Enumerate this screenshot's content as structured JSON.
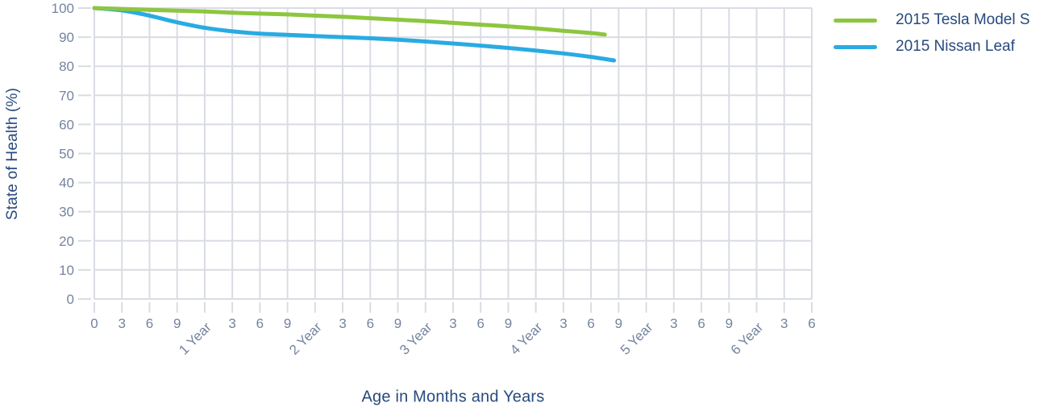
{
  "chart_data": {
    "type": "line",
    "title": "",
    "xlabel": "Age in Months and Years",
    "ylabel": "State of Health (%)",
    "x_unit": "months",
    "xlim": [
      0,
      78
    ],
    "ylim": [
      0,
      100
    ],
    "grid": true,
    "legend_position": "outside-top-right",
    "x_tick_step_months": 3,
    "x_tick_labels": [
      "0",
      "3",
      "6",
      "9",
      "1 Year",
      "3",
      "6",
      "9",
      "2 Year",
      "3",
      "6",
      "9",
      "3 Year",
      "3",
      "6",
      "9",
      "4 Year",
      "3",
      "6",
      "9",
      "5 Year",
      "3",
      "6",
      "9",
      "6 Year",
      "3",
      "6"
    ],
    "y_ticks": [
      0,
      10,
      20,
      30,
      40,
      50,
      60,
      70,
      80,
      90,
      100
    ],
    "series": [
      {
        "name": "2015 Tesla Model S",
        "color": "#8dc63f",
        "points": [
          [
            0,
            100
          ],
          [
            3,
            99.7
          ],
          [
            6,
            99.4
          ],
          [
            9,
            99.1
          ],
          [
            12,
            98.8
          ],
          [
            15,
            98.4
          ],
          [
            18,
            98.1
          ],
          [
            21,
            97.8
          ],
          [
            24,
            97.4
          ],
          [
            27,
            97.0
          ],
          [
            30,
            96.5
          ],
          [
            33,
            96.0
          ],
          [
            36,
            95.5
          ],
          [
            39,
            94.9
          ],
          [
            42,
            94.3
          ],
          [
            45,
            93.7
          ],
          [
            48,
            93.0
          ],
          [
            51,
            92.2
          ],
          [
            54,
            91.4
          ],
          [
            55.5,
            90.9
          ]
        ]
      },
      {
        "name": "2015 Nissan Leaf",
        "color": "#29abe2",
        "points": [
          [
            0,
            100
          ],
          [
            3,
            99.2
          ],
          [
            6,
            97.4
          ],
          [
            9,
            95.1
          ],
          [
            12,
            93.2
          ],
          [
            15,
            92.0
          ],
          [
            18,
            91.2
          ],
          [
            21,
            90.8
          ],
          [
            24,
            90.4
          ],
          [
            27,
            90.0
          ],
          [
            30,
            89.6
          ],
          [
            33,
            89.1
          ],
          [
            36,
            88.5
          ],
          [
            39,
            87.8
          ],
          [
            42,
            87.1
          ],
          [
            45,
            86.3
          ],
          [
            48,
            85.4
          ],
          [
            51,
            84.4
          ],
          [
            54,
            83.2
          ],
          [
            56.5,
            82.0
          ]
        ]
      }
    ]
  },
  "colors": {
    "axis_title_text": "#274a7d",
    "tick_label_text": "#75849e",
    "gridline": "#d9dce3",
    "background": "#ffffff",
    "tesla_line": "#8dc63f",
    "leaf_line": "#29abe2"
  },
  "legend": {
    "items": [
      {
        "label": "2015 Tesla Model S",
        "color": "#8dc63f"
      },
      {
        "label": "2015 Nissan Leaf",
        "color": "#29abe2"
      }
    ]
  }
}
